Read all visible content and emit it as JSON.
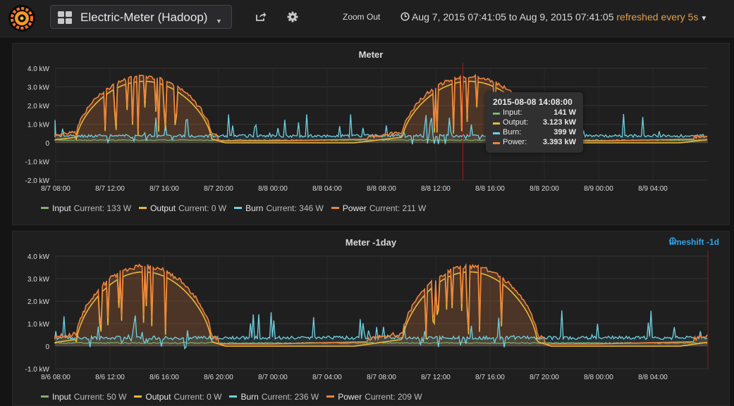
{
  "nav": {
    "dashboard_title": "Electric-Meter (Hadoop)",
    "zoom_out": "Zoom Out",
    "time_range": "Aug 7, 2015 07:41:05 to Aug 9, 2015 07:41:05",
    "refresh": "refreshed every 5s"
  },
  "colors": {
    "input": "#7eb26d",
    "output": "#eab839",
    "burn": "#6ed0e0",
    "power": "#ef843c",
    "timeshift": "#33a2e5"
  },
  "panels": [
    {
      "title": "Meter",
      "y_ticks": [
        "4.0 kW",
        "3.0 kW",
        "2.0 kW",
        "1.0 kW",
        "0",
        "-1.0 kW",
        "-2.0 kW"
      ],
      "x_ticks": [
        "8/7 08:00",
        "8/7 12:00",
        "8/7 16:00",
        "8/7 20:00",
        "8/8 00:00",
        "8/8 04:00",
        "8/8 08:00",
        "8/8 12:00",
        "8/8 16:00",
        "8/8 20:00",
        "8/9 00:00",
        "8/9 04:00"
      ],
      "legend": [
        {
          "name": "Input",
          "current": "Current: 133 W"
        },
        {
          "name": "Output",
          "current": "Current: 0 W"
        },
        {
          "name": "Burn",
          "current": "Current: 346 W"
        },
        {
          "name": "Power",
          "current": "Current: 211 W"
        }
      ]
    },
    {
      "title": "Meter -1day",
      "timeshift": "timeshift -1d",
      "y_ticks": [
        "4.0 kW",
        "3.0 kW",
        "2.0 kW",
        "1.0 kW",
        "0",
        "-1.0 kW"
      ],
      "x_ticks": [
        "8/6 08:00",
        "8/6 12:00",
        "8/6 16:00",
        "8/6 20:00",
        "8/7 00:00",
        "8/7 04:00",
        "8/7 08:00",
        "8/7 12:00",
        "8/7 16:00",
        "8/7 20:00",
        "8/8 00:00",
        "8/8 04:00"
      ],
      "legend": [
        {
          "name": "Input",
          "current": "Current: 50 W"
        },
        {
          "name": "Output",
          "current": "Current: 0 W"
        },
        {
          "name": "Burn",
          "current": "Current: 236 W"
        },
        {
          "name": "Power",
          "current": "Current: 209 W"
        }
      ]
    }
  ],
  "tooltip": {
    "time": "2015-08-08 14:08:00",
    "rows": [
      {
        "name": "Input:",
        "value": "141 W"
      },
      {
        "name": "Output:",
        "value": "3.123 kW"
      },
      {
        "name": "Burn:",
        "value": "399 W"
      },
      {
        "name": "Power:",
        "value": "3.393 kW"
      }
    ]
  }
}
